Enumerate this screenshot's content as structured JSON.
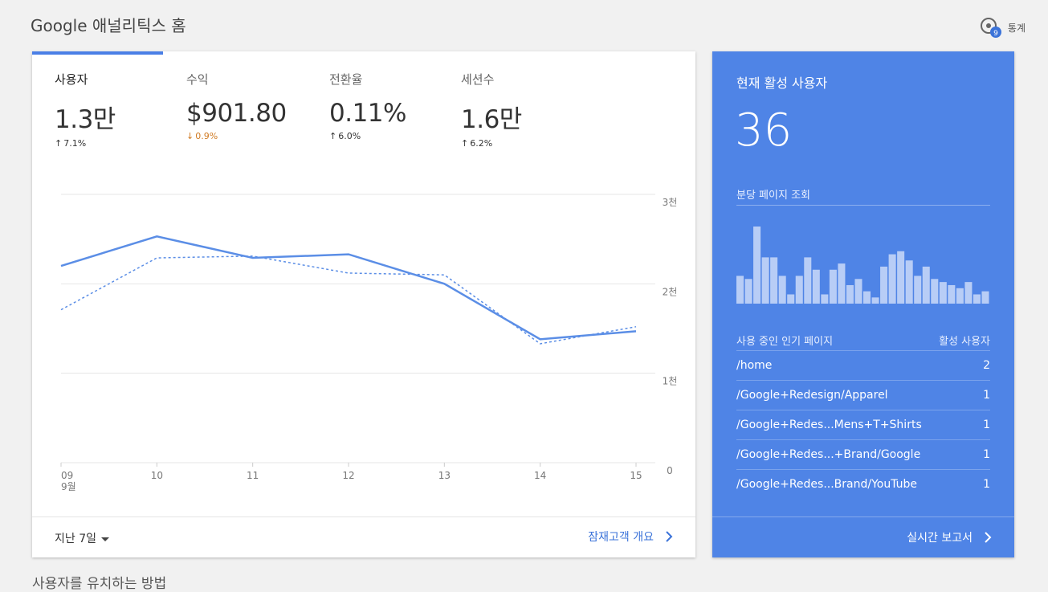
{
  "page_title": "Google 애널리틱스 홈",
  "insights": {
    "label": "통계",
    "badge": "9"
  },
  "metrics": [
    {
      "label": "사용자",
      "value": "1.3만",
      "change": "7.1%",
      "direction": "up"
    },
    {
      "label": "수익",
      "value": "$901.80",
      "change": "0.9%",
      "direction": "down"
    },
    {
      "label": "전환율",
      "value": "0.11%",
      "change": "6.0%",
      "direction": "up"
    },
    {
      "label": "세션수",
      "value": "1.6만",
      "change": "6.2%",
      "direction": "up"
    }
  ],
  "chart_data": {
    "type": "line",
    "categories": [
      "09\n9월",
      "10",
      "11",
      "12",
      "13",
      "14",
      "15"
    ],
    "x_tick_labels": [
      "09",
      "10",
      "11",
      "12",
      "13",
      "14",
      "15"
    ],
    "x_sublabel": "9월",
    "y_tick_labels": [
      "3천",
      "2천",
      "1천",
      "0"
    ],
    "ylim": [
      0,
      3000
    ],
    "series": [
      {
        "style": "solid",
        "values": [
          2200,
          2530,
          2290,
          2330,
          2000,
          1380,
          1470
        ]
      },
      {
        "style": "dashed",
        "values": [
          1710,
          2290,
          2310,
          2120,
          2100,
          1330,
          1520
        ]
      }
    ],
    "colors": {
      "line": "#5b8ee6",
      "grid": "#e6e6e6"
    }
  },
  "footer": {
    "date_range": "지난 7일",
    "link": "잠재고객 개요"
  },
  "realtime": {
    "title": "현재 활성 사용자",
    "value": "36",
    "ppm_label": "분당 페이지 조회",
    "ppm_values": [
      9,
      8,
      25,
      15,
      15,
      9,
      3,
      9,
      15,
      11,
      3,
      11,
      13,
      6,
      8,
      4,
      2,
      12,
      16,
      17,
      14,
      9,
      12,
      8,
      7,
      6,
      5,
      7,
      3,
      4
    ],
    "pages_header": {
      "page": "사용 중인 인기 페이지",
      "users": "활성 사용자"
    },
    "pages": [
      {
        "path": "/home",
        "users": "2"
      },
      {
        "path": "/Google+Redesign/Apparel",
        "users": "1"
      },
      {
        "path": "/Google+Redes...Mens+T+Shirts",
        "users": "1"
      },
      {
        "path": "/Google+Redes...+Brand/Google",
        "users": "1"
      },
      {
        "path": "/Google+Redes...Brand/YouTube",
        "users": "1"
      }
    ],
    "report_link": "실시간 보고서",
    "colors": {
      "card": "#4f84e6",
      "bars": "#b8cdf6"
    }
  },
  "next_section": "사용자를 유치하는 방법"
}
